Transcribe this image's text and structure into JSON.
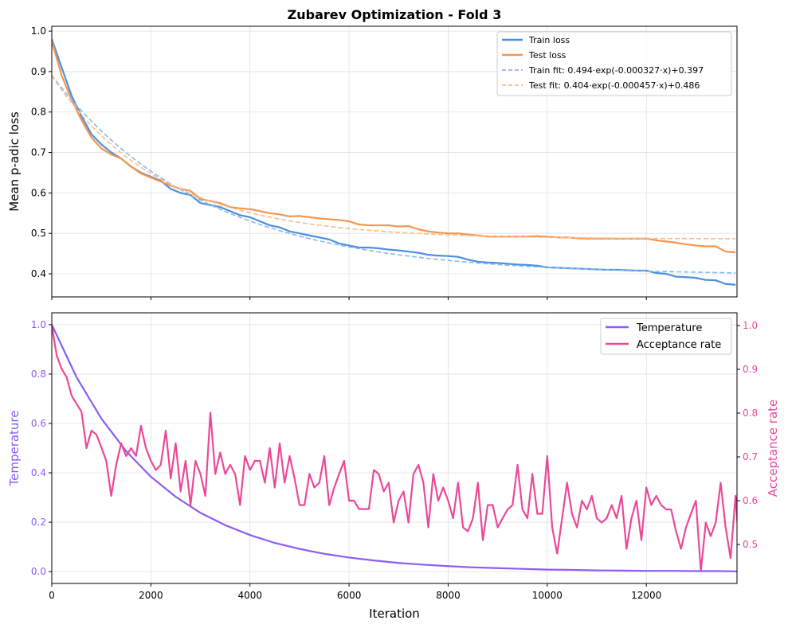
{
  "chart_data": [
    {
      "type": "line",
      "title": "Zubarev Optimization - Fold 3",
      "xlabel": "",
      "ylabel": "Mean p-adic loss",
      "xlim": [
        0,
        13830
      ],
      "ylim": [
        0.343,
        1.012
      ],
      "grid": true,
      "legend_position": "upper-right",
      "xticks": [
        0,
        2000,
        4000,
        6000,
        8000,
        10000,
        12000
      ],
      "yticks": [
        "0.4",
        "0.5",
        "0.6",
        "0.7",
        "0.8",
        "0.9",
        "1.0"
      ],
      "x": [
        0,
        200,
        400,
        600,
        800,
        1000,
        1200,
        1400,
        1600,
        1800,
        2000,
        2200,
        2400,
        2600,
        2800,
        3000,
        3200,
        3400,
        3600,
        3800,
        4000,
        4200,
        4400,
        4600,
        4800,
        5000,
        5200,
        5400,
        5600,
        5800,
        6000,
        6200,
        6400,
        6600,
        6800,
        7000,
        7200,
        7400,
        7600,
        7800,
        8000,
        8200,
        8400,
        8600,
        8800,
        9000,
        9200,
        9400,
        9600,
        9800,
        10000,
        10200,
        10400,
        10600,
        10800,
        11000,
        11200,
        11400,
        11600,
        11800,
        12000,
        12200,
        12400,
        12600,
        12800,
        13000,
        13200,
        13400,
        13600,
        13800
      ],
      "series": [
        {
          "name": "Train loss",
          "color": "#4a90e2",
          "style": "solid",
          "values": [
            0.98,
            0.91,
            0.84,
            0.79,
            0.745,
            0.72,
            0.7,
            0.685,
            0.665,
            0.65,
            0.64,
            0.63,
            0.61,
            0.6,
            0.595,
            0.575,
            0.57,
            0.565,
            0.555,
            0.545,
            0.54,
            0.53,
            0.52,
            0.515,
            0.505,
            0.5,
            0.495,
            0.49,
            0.485,
            0.475,
            0.47,
            0.465,
            0.465,
            0.463,
            0.46,
            0.458,
            0.455,
            0.452,
            0.447,
            0.445,
            0.444,
            0.442,
            0.435,
            0.43,
            0.428,
            0.427,
            0.425,
            0.423,
            0.422,
            0.42,
            0.416,
            0.415,
            0.414,
            0.413,
            0.412,
            0.411,
            0.41,
            0.41,
            0.409,
            0.408,
            0.408,
            0.402,
            0.4,
            0.393,
            0.392,
            0.39,
            0.385,
            0.384,
            0.375,
            0.373
          ]
        },
        {
          "name": "Test loss",
          "color": "#f5964f",
          "style": "solid",
          "values": [
            0.975,
            0.89,
            0.83,
            0.78,
            0.737,
            0.71,
            0.695,
            0.685,
            0.665,
            0.648,
            0.638,
            0.628,
            0.618,
            0.61,
            0.605,
            0.585,
            0.58,
            0.575,
            0.565,
            0.562,
            0.56,
            0.555,
            0.55,
            0.547,
            0.542,
            0.543,
            0.54,
            0.537,
            0.535,
            0.533,
            0.53,
            0.522,
            0.52,
            0.52,
            0.52,
            0.517,
            0.518,
            0.51,
            0.505,
            0.502,
            0.5,
            0.5,
            0.497,
            0.495,
            0.492,
            0.492,
            0.492,
            0.492,
            0.492,
            0.493,
            0.492,
            0.49,
            0.49,
            0.488,
            0.487,
            0.487,
            0.487,
            0.487,
            0.487,
            0.487,
            0.487,
            0.483,
            0.48,
            0.477,
            0.473,
            0.47,
            0.468,
            0.468,
            0.455,
            0.453
          ]
        },
        {
          "name": "Train fit: 0.494·exp(-0.000327·x)+0.397",
          "color": "#8ab8f0",
          "style": "dashed",
          "fit": {
            "a": 0.494,
            "b": 0.000327,
            "c": 0.397
          }
        },
        {
          "name": "Test fit: 0.404·exp(-0.000457·x)+0.486",
          "color": "#f9bd8f",
          "style": "dashed",
          "fit": {
            "a": 0.404,
            "b": 0.000457,
            "c": 0.486
          }
        }
      ]
    },
    {
      "type": "line",
      "xlabel": "Iteration",
      "ylabel": "Temperature",
      "ylabel_right": "Acceptance rate",
      "xlim": [
        0,
        13830
      ],
      "ylim": [
        -0.048,
        1.048
      ],
      "ylim_right": [
        0.411,
        1.029
      ],
      "grid": true,
      "legend_position": "upper-right",
      "xticks": [
        "0",
        "2000",
        "4000",
        "6000",
        "8000",
        "10000",
        "12000"
      ],
      "yticks": [
        "0.0",
        "0.2",
        "0.4",
        "0.6",
        "0.8",
        "1.0"
      ],
      "yticks_right": [
        "0.5",
        "0.6",
        "0.7",
        "0.8",
        "0.9",
        "1.0"
      ],
      "series": [
        {
          "name": "Temperature",
          "color": "#8b5cf6",
          "axis": "left",
          "x": [
            0,
            500,
            1000,
            1500,
            2000,
            2500,
            3000,
            3500,
            4000,
            4500,
            5000,
            5500,
            6000,
            6500,
            7000,
            7500,
            8000,
            8500,
            9000,
            9500,
            10000,
            10500,
            11000,
            11500,
            12000,
            12500,
            13000,
            13500,
            13830
          ],
          "values": [
            1.0,
            0.787,
            0.62,
            0.488,
            0.384,
            0.303,
            0.238,
            0.188,
            0.148,
            0.116,
            0.092,
            0.072,
            0.057,
            0.045,
            0.035,
            0.028,
            0.022,
            0.017,
            0.014,
            0.011,
            0.008,
            0.007,
            0.005,
            0.004,
            0.003,
            0.003,
            0.002,
            0.002,
            0.001
          ]
        },
        {
          "name": "Acceptance rate",
          "color": "#ec4899",
          "axis": "right",
          "x_step": 100,
          "values": [
            1.0,
            0.931,
            0.901,
            0.882,
            0.84,
            0.821,
            0.803,
            0.72,
            0.76,
            0.751,
            0.722,
            0.691,
            0.611,
            0.682,
            0.731,
            0.702,
            0.72,
            0.702,
            0.771,
            0.72,
            0.691,
            0.67,
            0.682,
            0.76,
            0.651,
            0.731,
            0.621,
            0.691,
            0.59,
            0.691,
            0.661,
            0.611,
            0.801,
            0.661,
            0.71,
            0.661,
            0.682,
            0.661,
            0.59,
            0.702,
            0.67,
            0.691,
            0.691,
            0.641,
            0.72,
            0.63,
            0.731,
            0.641,
            0.702,
            0.651,
            0.59,
            0.59,
            0.661,
            0.63,
            0.641,
            0.702,
            0.59,
            0.63,
            0.661,
            0.691,
            0.6,
            0.6,
            0.581,
            0.581,
            0.581,
            0.67,
            0.661,
            0.621,
            0.641,
            0.55,
            0.6,
            0.621,
            0.55,
            0.661,
            0.682,
            0.641,
            0.539,
            0.661,
            0.6,
            0.63,
            0.6,
            0.56,
            0.641,
            0.539,
            0.53,
            0.56,
            0.641,
            0.51,
            0.59,
            0.59,
            0.539,
            0.56,
            0.58,
            0.59,
            0.682,
            0.58,
            0.56,
            0.661,
            0.57,
            0.57,
            0.702,
            0.539,
            0.479,
            0.56,
            0.641,
            0.57,
            0.539,
            0.6,
            0.58,
            0.611,
            0.56,
            0.55,
            0.56,
            0.59,
            0.56,
            0.611,
            0.49,
            0.56,
            0.6,
            0.51,
            0.63,
            0.59,
            0.611,
            0.59,
            0.58,
            0.58,
            0.53,
            0.49,
            0.539,
            0.57,
            0.6,
            0.439,
            0.55,
            0.519,
            0.55,
            0.641,
            0.539,
            0.469,
            0.611,
            0.45
          ]
        }
      ]
    }
  ]
}
